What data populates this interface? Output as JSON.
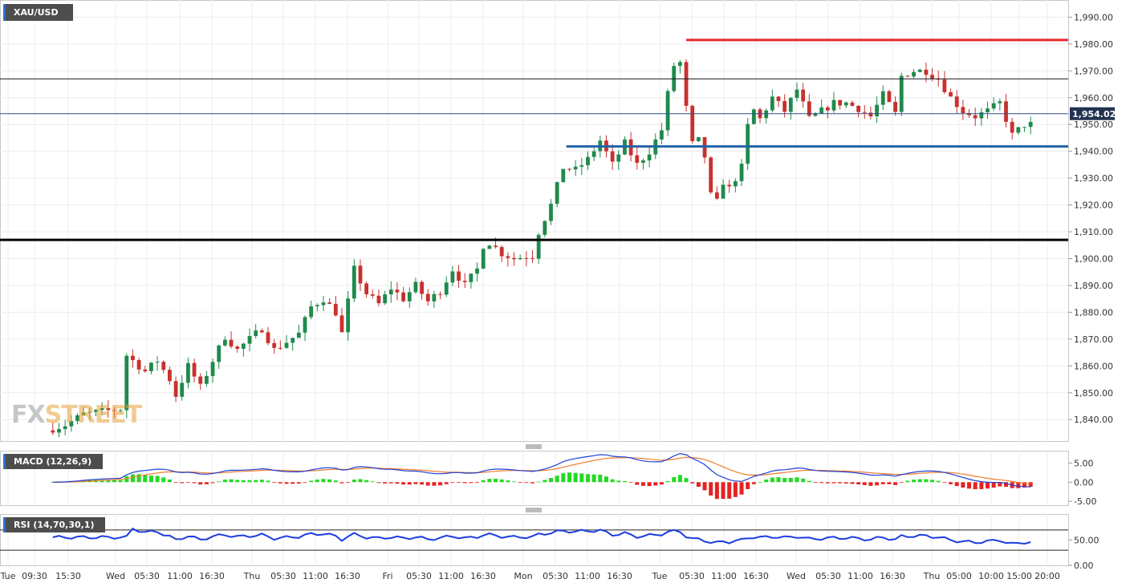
{
  "header": {
    "symbol": "XAU/USD"
  },
  "logo": {
    "part1": "FX",
    "part2": "STREET"
  },
  "current_price": "1,954.02",
  "colors": {
    "up": "#1f8a4c",
    "down": "#c8312e",
    "resistance": "#e8262a",
    "support_blue": "#2264a8",
    "price_line": "#2c4f8f",
    "macd_line": "#1f3fd6",
    "signal_line": "#f07b2a",
    "hist_pos": "#23d923",
    "hist_neg": "#e62222",
    "rsi_line": "#1a3de0"
  },
  "chart_data": [
    {
      "type": "candlestick",
      "title": "XAU/USD",
      "ylim": [
        1832,
        1994
      ],
      "y_ticks": [
        "1,990.00",
        "1,980.00",
        "1,970.00",
        "1,960.00",
        "1,950.00",
        "1,940.00",
        "1,930.00",
        "1,920.00",
        "1,910.00",
        "1,900.00",
        "1,890.00",
        "1,880.00",
        "1,870.00",
        "1,860.00",
        "1,850.00",
        "1,840.00"
      ],
      "x_ticks": [
        "Tue",
        "09:30",
        "15:30",
        "Wed",
        "05:30",
        "11:00",
        "16:30",
        "Thu",
        "05:30",
        "11:00",
        "16:30",
        "Fri",
        "05:30",
        "11:00",
        "16:30",
        "Mon",
        "05:30",
        "11:00",
        "16:30",
        "Tue",
        "05:30",
        "11:00",
        "16:30",
        "Wed",
        "05:30",
        "11:00",
        "16:30",
        "Thu",
        "05:00",
        "10:00",
        "15:00",
        "20:00"
      ],
      "path": [
        [
          0,
          1836
        ],
        [
          3,
          1838
        ],
        [
          6,
          1842
        ],
        [
          9,
          1843
        ],
        [
          12,
          1844
        ],
        [
          13,
          1864
        ],
        [
          16,
          1858
        ],
        [
          18,
          1862
        ],
        [
          20,
          1855
        ],
        [
          21,
          1849
        ],
        [
          23,
          1860
        ],
        [
          25,
          1852
        ],
        [
          27,
          1862
        ],
        [
          29,
          1871
        ],
        [
          31,
          1866
        ],
        [
          33,
          1870
        ],
        [
          35,
          1874
        ],
        [
          37,
          1866
        ],
        [
          39,
          1869
        ],
        [
          41,
          1872
        ],
        [
          43,
          1882
        ],
        [
          45,
          1885
        ],
        [
          47,
          1880
        ],
        [
          48,
          1872
        ],
        [
          50,
          1896
        ],
        [
          52,
          1887
        ],
        [
          54,
          1883
        ],
        [
          56,
          1889
        ],
        [
          58,
          1885
        ],
        [
          60,
          1890
        ],
        [
          62,
          1884
        ],
        [
          64,
          1888
        ],
        [
          66,
          1896
        ],
        [
          68,
          1890
        ],
        [
          70,
          1896
        ],
        [
          71,
          1905
        ],
        [
          72,
          1906
        ],
        [
          74,
          1902
        ],
        [
          76,
          1900
        ],
        [
          78,
          1901
        ],
        [
          79,
          1901
        ],
        [
          80,
          1910
        ],
        [
          82,
          1920
        ],
        [
          84,
          1934
        ],
        [
          86,
          1933
        ],
        [
          88,
          1937
        ],
        [
          90,
          1944
        ],
        [
          92,
          1935
        ],
        [
          94,
          1943
        ],
        [
          96,
          1935
        ],
        [
          98,
          1940
        ],
        [
          100,
          1948
        ],
        [
          101.5,
          1968
        ],
        [
          102.5,
          1976
        ],
        [
          103.5,
          1970
        ],
        [
          104.5,
          1942
        ],
        [
          106,
          1944
        ],
        [
          107.5,
          1935
        ],
        [
          108.5,
          1912
        ],
        [
          109.5,
          1930
        ],
        [
          111,
          1926
        ],
        [
          113,
          1934
        ],
        [
          114.5,
          1957
        ],
        [
          116,
          1952
        ],
        [
          118,
          1960
        ],
        [
          120,
          1955
        ],
        [
          122,
          1963
        ],
        [
          124,
          1952
        ],
        [
          126,
          1955
        ],
        [
          128,
          1958
        ],
        [
          130,
          1958
        ],
        [
          132,
          1956
        ],
        [
          134,
          1953
        ],
        [
          136,
          1961
        ],
        [
          138,
          1954
        ],
        [
          139,
          1968
        ],
        [
          141,
          1970
        ],
        [
          143,
          1970
        ],
        [
          145,
          1967
        ],
        [
          147,
          1960
        ],
        [
          149,
          1955
        ],
        [
          151,
          1953
        ],
        [
          153,
          1955
        ],
        [
          155,
          1958
        ],
        [
          157,
          1946
        ],
        [
          159,
          1950
        ]
      ],
      "x_range": [
        0,
        160
      ],
      "horizontal_levels": [
        {
          "value": 1981.5,
          "color": "#e8262a",
          "from": 103.5
        },
        {
          "value": 1967,
          "color": "#1a1a1a"
        },
        {
          "value": 1941.8,
          "color": "#2264a8",
          "from": 84
        },
        {
          "value": 1907,
          "color": "#000000"
        }
      ],
      "current_value": 1954.02
    },
    {
      "type": "macd",
      "name": "MACD (12,26,9)",
      "y_ticks": [
        "5.00",
        "0.00",
        "-5.00"
      ],
      "ylim": [
        -6,
        8
      ]
    },
    {
      "type": "line",
      "name": "RSI (14,70,30,1)",
      "y_ticks": [
        "50.00",
        "0.00"
      ],
      "levels": [
        70,
        30
      ],
      "ylim": [
        0,
        100
      ]
    }
  ]
}
